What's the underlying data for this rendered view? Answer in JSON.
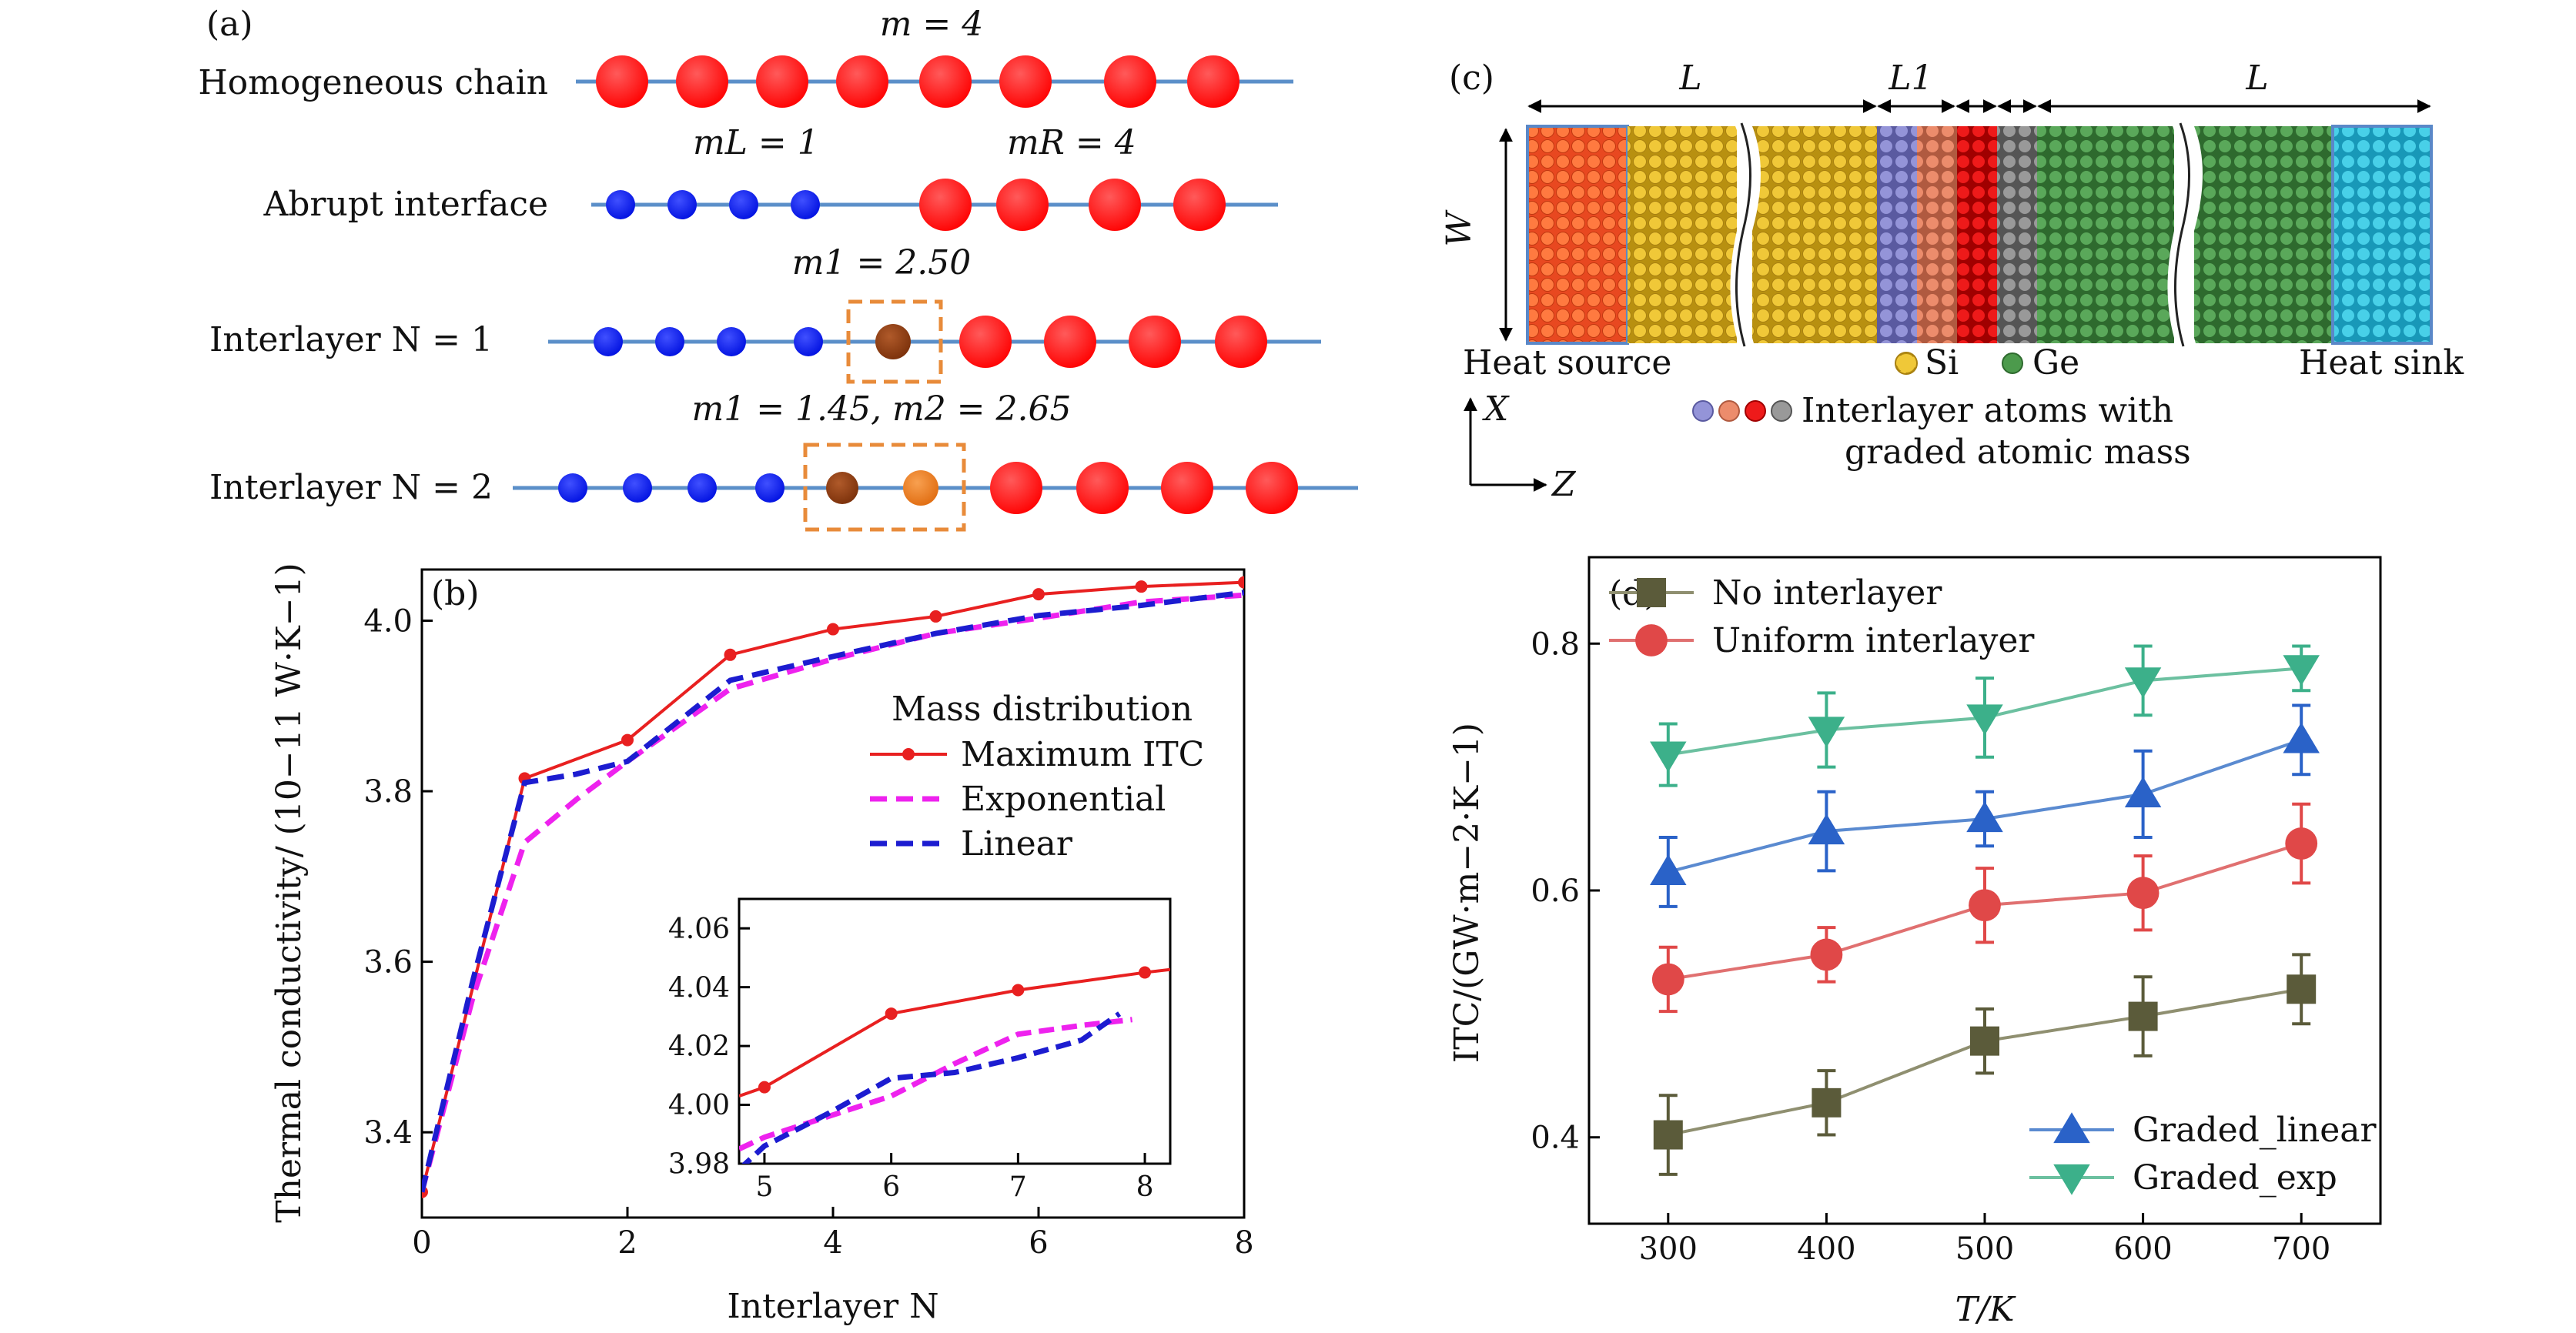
{
  "panel_a": {
    "label": "(a)",
    "rows": [
      {
        "name": "Homogeneous chain",
        "caption": "m = 4"
      },
      {
        "name": "Abrupt interface",
        "caption_left": "mL = 1",
        "caption_right": "mR = 4"
      },
      {
        "name": "Interlayer N = 1",
        "caption": "m1 = 2.50"
      },
      {
        "name": "Interlayer N = 2",
        "caption": "m1 = 1.45,  m2 = 2.65"
      }
    ],
    "colors": {
      "heavy": "#ff0000",
      "light": "#0010e8",
      "mid1": "#8b3a0e",
      "mid2": "#e8781a",
      "line": "#5b8fc9",
      "box": "#e88b3a"
    }
  },
  "panel_c": {
    "label": "(c)",
    "dim_L_left": "L",
    "dim_L1": "L1",
    "dim_L_right": "L",
    "dim_W": "W",
    "heat_source": "Heat source",
    "heat_sink": "Heat sink",
    "si": "Si",
    "ge": "Ge",
    "interlayer_line1": "Interlayer atoms with",
    "interlayer_line2": "graded atomic mass",
    "axis_x": "X",
    "axis_z": "Z",
    "colors": {
      "source": "#f05a30",
      "si": "#e8c030",
      "ge": "#4c9a4c",
      "sink": "#38c8e0",
      "grad1": "#8888cc",
      "grad2": "#e08060",
      "grad3": "#dd1111",
      "grad4": "#888888"
    }
  },
  "chart_data": [
    {
      "panel": "(b)",
      "type": "line",
      "xlabel": "Interlayer N",
      "ylabel": "Thermal conductivity/ (10−11 W·K−1)",
      "xlim": [
        0,
        8
      ],
      "ylim": [
        3.3,
        4.06
      ],
      "xticks": [
        0,
        2,
        4,
        6,
        8
      ],
      "yticks": [
        3.4,
        3.6,
        3.8,
        4.0
      ],
      "legend_title": "Mass distribution",
      "legend_position": "right",
      "series": [
        {
          "name": "Maximum ITC",
          "color": "#e82020",
          "style": "solid",
          "markers": true,
          "x": [
            0,
            1,
            2,
            3,
            4,
            5,
            6,
            7,
            8
          ],
          "y": [
            3.33,
            3.815,
            3.86,
            3.96,
            3.99,
            4.005,
            4.031,
            4.04,
            4.045
          ]
        },
        {
          "name": "Exponential",
          "color": "#ee22ee",
          "style": "dashed",
          "markers": false,
          "x": [
            0,
            0.5,
            1,
            1.5,
            2,
            3,
            4,
            5,
            6,
            7,
            8
          ],
          "y": [
            3.33,
            3.56,
            3.74,
            3.79,
            3.835,
            3.92,
            3.955,
            3.985,
            4.003,
            4.022,
            4.03
          ]
        },
        {
          "name": "Linear",
          "color": "#1c1cd0",
          "style": "dashed",
          "markers": false,
          "x": [
            0,
            0.5,
            1,
            1.5,
            2,
            3,
            4,
            5,
            6,
            7,
            8
          ],
          "y": [
            3.33,
            3.58,
            3.81,
            3.82,
            3.835,
            3.93,
            3.958,
            3.985,
            4.006,
            4.018,
            4.033
          ]
        }
      ],
      "inset": {
        "xlim": [
          4.8,
          8.2
        ],
        "ylim": [
          3.98,
          4.07
        ],
        "xticks": [
          5,
          6,
          7,
          8
        ],
        "yticks": [
          3.98,
          4.0,
          4.02,
          4.04,
          4.06
        ],
        "series": [
          {
            "name": "Maximum ITC",
            "x": [
              4.8,
              5,
              6,
              7,
              8,
              8.2
            ],
            "y": [
              4.003,
              4.006,
              4.031,
              4.039,
              4.045,
              4.046
            ]
          },
          {
            "name": "Exponential",
            "x": [
              4.8,
              5,
              5.5,
              6,
              6.5,
              7,
              7.5,
              7.9
            ],
            "y": [
              3.985,
              3.989,
              3.996,
              4.003,
              4.014,
              4.024,
              4.027,
              4.029
            ]
          },
          {
            "name": "Linear",
            "x": [
              4.8,
              5,
              5.5,
              6,
              6.5,
              7,
              7.5,
              7.8
            ],
            "y": [
              3.978,
              3.986,
              3.997,
              4.009,
              4.011,
              4.016,
              4.022,
              4.031
            ]
          }
        ]
      }
    },
    {
      "panel": "(d)",
      "type": "line",
      "xlabel": "T/K",
      "ylabel": "ITC/(GW·m−2·K−1)",
      "xlim": [
        250,
        750
      ],
      "ylim": [
        0.33,
        0.87
      ],
      "xticks": [
        300,
        400,
        500,
        600,
        700
      ],
      "yticks": [
        0.4,
        0.6,
        0.8
      ],
      "x": [
        300,
        400,
        500,
        600,
        700
      ],
      "series": [
        {
          "name": "No interlayer",
          "color": "#5b5b3a",
          "line": "#8f8f70",
          "marker": "square",
          "y": [
            0.402,
            0.428,
            0.478,
            0.498,
            0.52
          ],
          "err": [
            0.032,
            0.026,
            0.026,
            0.032,
            0.028
          ]
        },
        {
          "name": "Uniform interlayer",
          "color": "#e04848",
          "line": "#e07070",
          "marker": "circle",
          "y": [
            0.528,
            0.548,
            0.588,
            0.598,
            0.638
          ],
          "err": [
            0.026,
            0.022,
            0.03,
            0.03,
            0.032
          ]
        },
        {
          "name": "Graded_linear",
          "color": "#2a62c8",
          "line": "#5a8ad0",
          "marker": "triangle-up",
          "y": [
            0.615,
            0.648,
            0.658,
            0.678,
            0.722
          ],
          "err": [
            0.028,
            0.032,
            0.022,
            0.035,
            0.028
          ]
        },
        {
          "name": "Graded_exp",
          "color": "#3cb08a",
          "line": "#6cc0a0",
          "marker": "triangle-down",
          "y": [
            0.71,
            0.73,
            0.74,
            0.77,
            0.78
          ],
          "err": [
            0.025,
            0.03,
            0.032,
            0.028,
            0.018
          ]
        }
      ]
    }
  ]
}
